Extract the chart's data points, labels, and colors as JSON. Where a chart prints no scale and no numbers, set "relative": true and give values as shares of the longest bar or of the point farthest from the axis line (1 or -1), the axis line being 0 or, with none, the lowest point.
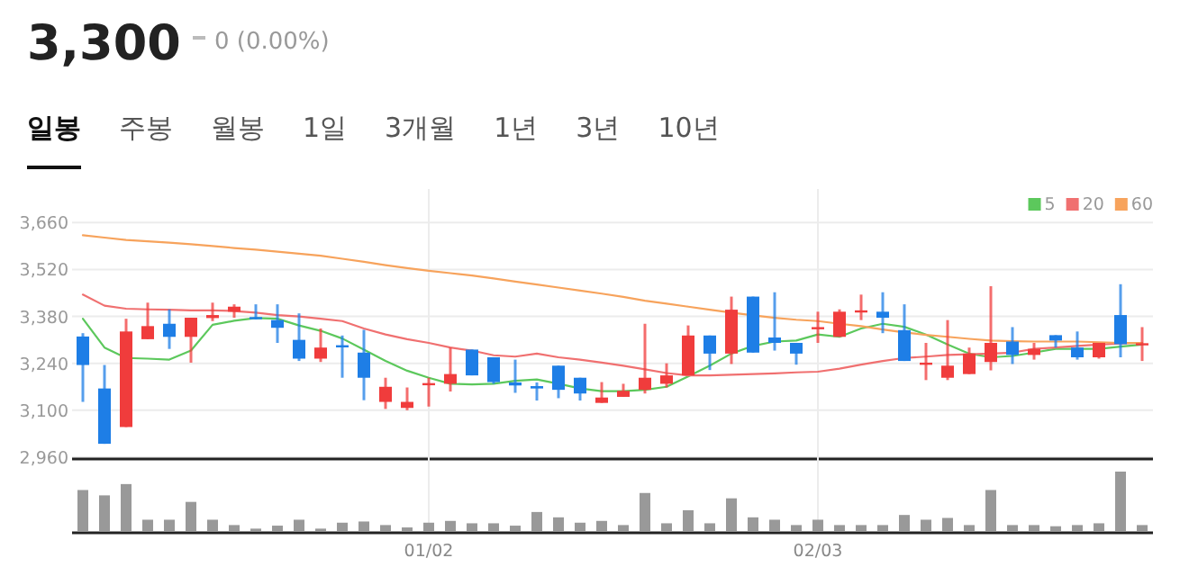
{
  "chart_data": [
    {
      "type": "candlestick",
      "title": "3,300",
      "subtitle": "0 (0.00%)",
      "annotations": [
        "일봉",
        "주봉",
        "월봉",
        "1일",
        "3개월",
        "1년",
        "3년",
        "10년"
      ],
      "categories": [
        null,
        null,
        null,
        null,
        null,
        null,
        null,
        null,
        null,
        null,
        null,
        null,
        null,
        null,
        null,
        null,
        null,
        null,
        null,
        null,
        null,
        null,
        null,
        null,
        null,
        null,
        null,
        null,
        null,
        null,
        null,
        null,
        null,
        null,
        null,
        null,
        null,
        null,
        null,
        null,
        null,
        null,
        null,
        null,
        null,
        null,
        null,
        null,
        null,
        null
      ],
      "ohlc": [
        [
          3320,
          3330,
          3125,
          3235
        ],
        [
          3165,
          3235,
          3000,
          3000
        ],
        [
          3050,
          3373,
          3050,
          3335
        ],
        [
          3312,
          3421,
          3312,
          3351
        ],
        [
          3358,
          3401,
          3283,
          3319
        ],
        [
          3319,
          3376,
          3242,
          3376
        ],
        [
          3375,
          3421,
          3366,
          3384
        ],
        [
          3394,
          3416,
          3376,
          3409
        ],
        [
          3378,
          3416,
          3371,
          3375
        ],
        [
          3369,
          3416,
          3301,
          3346
        ],
        [
          3310,
          3389,
          3247,
          3254
        ],
        [
          3254,
          3344,
          3244,
          3287
        ],
        [
          3294,
          3323,
          3197,
          3290
        ],
        [
          3272,
          3340,
          3130,
          3197
        ],
        [
          3125,
          3197,
          3104,
          3170
        ],
        [
          3107,
          3168,
          3100,
          3125
        ],
        [
          3178,
          3197,
          3111,
          3181
        ],
        [
          3179,
          3287,
          3156,
          3208
        ],
        [
          3281,
          3281,
          3204,
          3204
        ],
        [
          3258,
          3258,
          3179,
          3184
        ],
        [
          3183,
          3251,
          3152,
          3174
        ],
        [
          3172,
          3183,
          3129,
          3165
        ],
        [
          3233,
          3233,
          3136,
          3161
        ],
        [
          3197,
          3197,
          3129,
          3150
        ],
        [
          3122,
          3184,
          3122,
          3138
        ],
        [
          3140,
          3179,
          3140,
          3158
        ],
        [
          3161,
          3358,
          3150,
          3197
        ],
        [
          3179,
          3240,
          3168,
          3204
        ],
        [
          3204,
          3353,
          3204,
          3323
        ],
        [
          3323,
          3323,
          3220,
          3269
        ],
        [
          3269,
          3439,
          3238,
          3400
        ],
        [
          3439,
          3439,
          3272,
          3272
        ],
        [
          3317,
          3452,
          3278,
          3301
        ],
        [
          3301,
          3301,
          3236,
          3269
        ],
        [
          3342,
          3394,
          3301,
          3348
        ],
        [
          3319,
          3401,
          3319,
          3394
        ],
        [
          3394,
          3445,
          3369,
          3398
        ],
        [
          3394,
          3452,
          3330,
          3376
        ],
        [
          3339,
          3416,
          3247,
          3247
        ],
        [
          3240,
          3301,
          3190,
          3242
        ],
        [
          3197,
          3369,
          3190,
          3233
        ],
        [
          3208,
          3287,
          3208,
          3269
        ],
        [
          3244,
          3470,
          3219,
          3301
        ],
        [
          3305,
          3348,
          3238,
          3265
        ],
        [
          3265,
          3301,
          3251,
          3283
        ],
        [
          3324,
          3324,
          3287,
          3308
        ],
        [
          3287,
          3335,
          3251,
          3258
        ],
        [
          3258,
          3301,
          3254,
          3301
        ],
        [
          3384,
          3476,
          3258,
          3297
        ],
        [
          3300,
          3348,
          3247,
          3300
        ]
      ],
      "colors": [
        "#1e7ee6",
        "#1e7ee6",
        "#f03c3c",
        "#f03c3c",
        "#1e7ee6",
        "#f03c3c",
        "#f03c3c",
        "#f03c3c",
        "#1e7ee6",
        "#1e7ee6",
        "#1e7ee6",
        "#f03c3c",
        "#1e7ee6",
        "#1e7ee6",
        "#f03c3c",
        "#f03c3c",
        "#f03c3c",
        "#f03c3c",
        "#1e7ee6",
        "#1e7ee6",
        "#1e7ee6",
        "#1e7ee6",
        "#1e7ee6",
        "#1e7ee6",
        "#f03c3c",
        "#f03c3c",
        "#f03c3c",
        "#f03c3c",
        "#f03c3c",
        "#1e7ee6",
        "#f03c3c",
        "#1e7ee6",
        "#1e7ee6",
        "#1e7ee6",
        "#f03c3c",
        "#f03c3c",
        "#f03c3c",
        "#1e7ee6",
        "#1e7ee6",
        "#f03c3c",
        "#f03c3c",
        "#f03c3c",
        "#f03c3c",
        "#1e7ee6",
        "#f03c3c",
        "#1e7ee6",
        "#1e7ee6",
        "#f03c3c",
        "#1e7ee6",
        "#f03c3c"
      ],
      "series": [
        {
          "name": "5",
          "type": "line",
          "color": "#5cc85c",
          "values": [
            3373,
            3287,
            3256,
            3254,
            3251,
            3278,
            3355,
            3367,
            3375,
            3373,
            3353,
            3337,
            3314,
            3281,
            3247,
            3218,
            3197,
            3179,
            3177,
            3179,
            3188,
            3192,
            3179,
            3165,
            3157,
            3157,
            3161,
            3170,
            3201,
            3233,
            3269,
            3292,
            3305,
            3308,
            3326,
            3319,
            3344,
            3358,
            3349,
            3326,
            3296,
            3269,
            3258,
            3262,
            3272,
            3283,
            3283,
            3283,
            3290,
            3296
          ]
        },
        {
          "name": "20",
          "type": "line",
          "color": "#f07070",
          "values": [
            3445,
            3412,
            3403,
            3401,
            3400,
            3398,
            3398,
            3396,
            3391,
            3384,
            3380,
            3373,
            3366,
            3344,
            3326,
            3312,
            3301,
            3287,
            3278,
            3264,
            3260,
            3269,
            3258,
            3251,
            3242,
            3233,
            3222,
            3211,
            3204,
            3204,
            3206,
            3208,
            3210,
            3213,
            3215,
            3224,
            3236,
            3247,
            3256,
            3260,
            3265,
            3267,
            3269,
            3272,
            3283,
            3287,
            3292,
            3296,
            3299,
            3301
          ]
        },
        {
          "name": "60",
          "type": "line",
          "color": "#f7a35c",
          "values": [
            3622,
            3615,
            3608,
            3604,
            3600,
            3595,
            3590,
            3584,
            3579,
            3573,
            3567,
            3561,
            3552,
            3543,
            3533,
            3524,
            3516,
            3509,
            3502,
            3493,
            3484,
            3475,
            3466,
            3457,
            3448,
            3438,
            3427,
            3418,
            3409,
            3400,
            3391,
            3383,
            3376,
            3370,
            3366,
            3358,
            3351,
            3341,
            3332,
            3325,
            3319,
            3313,
            3308,
            3306,
            3305,
            3305,
            3305,
            3303,
            3301,
            3301
          ]
        }
      ],
      "ylim": [
        2960,
        3760
      ],
      "yticks": [
        {
          "value": 2960,
          "label": "2,960"
        },
        {
          "value": 3100,
          "label": "3,100"
        },
        {
          "value": 3240,
          "label": "3,240"
        },
        {
          "value": 3380,
          "label": "3,380"
        },
        {
          "value": 3520,
          "label": "3,520"
        },
        {
          "value": 3660,
          "label": "3,660"
        }
      ],
      "grid": true,
      "legend": "top right",
      "tick_labels": "y"
    },
    {
      "type": "bar",
      "relative": true,
      "color": "#999999",
      "grid": "x",
      "tick_labels": "x",
      "categories": [
        null,
        null,
        null,
        null,
        null,
        null,
        null,
        null,
        null,
        null,
        null,
        null,
        null,
        null,
        null,
        null,
        "01/02",
        null,
        null,
        null,
        null,
        null,
        null,
        null,
        null,
        null,
        null,
        null,
        null,
        null,
        null,
        null,
        null,
        null,
        "02/03",
        null,
        null,
        null,
        null,
        null,
        null,
        null,
        null,
        null,
        null,
        null,
        null,
        null,
        null,
        null
      ],
      "values": [
        0.69,
        0.6,
        0.79,
        0.19,
        0.19,
        0.49,
        0.19,
        0.1,
        0.04,
        0.09,
        0.19,
        0.04,
        0.14,
        0.16,
        0.1,
        0.06,
        0.14,
        0.17,
        0.13,
        0.13,
        0.09,
        0.32,
        0.23,
        0.14,
        0.17,
        0.1,
        0.64,
        0.13,
        0.35,
        0.13,
        0.55,
        0.23,
        0.19,
        0.1,
        0.19,
        0.1,
        0.1,
        0.1,
        0.27,
        0.19,
        0.22,
        0.1,
        0.69,
        0.1,
        0.1,
        0.08,
        0.1,
        0.13,
        1,
        0.1
      ]
    }
  ]
}
